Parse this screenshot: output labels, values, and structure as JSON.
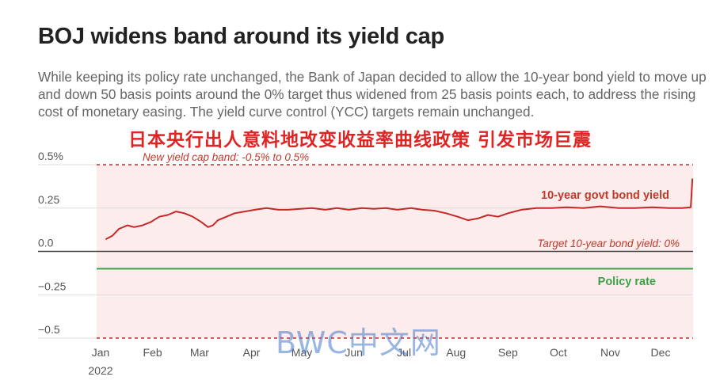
{
  "header": {
    "title": "BOJ widens band around its yield cap",
    "subtitle": "While keeping its policy rate unchanged, the Bank of Japan decided to allow the 10-year bond yield to move up and down 50 basis points around the 0% target thus widened from 25 basis points each, to address the rising cost of monetary easing. The yield curve control (YCC) targets remain unchanged.",
    "overlay_caption": "日本央行出人意料地改变收益率曲线政策 引发市场巨震",
    "watermark": "BWC中文网"
  },
  "chart_data": {
    "type": "line",
    "title": "BOJ widens band around its yield cap",
    "ylim": [
      -0.5,
      0.5
    ],
    "xlim": [
      "2022-01-01",
      "2022-12-31"
    ],
    "y_ticks": [
      {
        "value": 0.5,
        "label": "0.5%"
      },
      {
        "value": 0.25,
        "label": "0.25"
      },
      {
        "value": 0.0,
        "label": "0.0"
      },
      {
        "value": -0.25,
        "label": "−0.25"
      },
      {
        "value": -0.5,
        "label": "−0.5"
      }
    ],
    "x_ticks": [
      {
        "date": "2022-01-01",
        "label": "Jan",
        "sublabel": "2022"
      },
      {
        "date": "2022-02-01",
        "label": "Feb"
      },
      {
        "date": "2022-03-01",
        "label": "Mar"
      },
      {
        "date": "2022-04-01",
        "label": "Apr"
      },
      {
        "date": "2022-05-01",
        "label": "May"
      },
      {
        "date": "2022-06-01",
        "label": "Jun"
      },
      {
        "date": "2022-07-01",
        "label": "Jul"
      },
      {
        "date": "2022-08-01",
        "label": "Aug"
      },
      {
        "date": "2022-09-01",
        "label": "Sep"
      },
      {
        "date": "2022-10-01",
        "label": "Oct"
      },
      {
        "date": "2022-11-01",
        "label": "Nov"
      },
      {
        "date": "2022-12-01",
        "label": "Dec"
      }
    ],
    "band": {
      "upper": 0.5,
      "lower": -0.5,
      "label": "New yield cap band: -0.5% to 0.5%",
      "color": "#fdecec"
    },
    "reference_lines": [
      {
        "name": "Target 10-year bond yield: 0%",
        "value": 0.0,
        "color": "#444444"
      },
      {
        "name": "Policy rate",
        "value": -0.1,
        "color": "#3aa14a"
      }
    ],
    "series": [
      {
        "name": "10-year govt bond yield",
        "color": "#c62828",
        "x": [
          "2022-01-04",
          "2022-01-08",
          "2022-01-12",
          "2022-01-17",
          "2022-01-21",
          "2022-01-26",
          "2022-01-31",
          "2022-02-05",
          "2022-02-10",
          "2022-02-15",
          "2022-02-20",
          "2022-02-25",
          "2022-03-02",
          "2022-03-06",
          "2022-03-09",
          "2022-03-12",
          "2022-03-17",
          "2022-03-22",
          "2022-03-28",
          "2022-04-03",
          "2022-04-10",
          "2022-04-17",
          "2022-04-23",
          "2022-04-30",
          "2022-05-07",
          "2022-05-15",
          "2022-05-22",
          "2022-05-29",
          "2022-06-06",
          "2022-06-13",
          "2022-06-20",
          "2022-06-27",
          "2022-07-05",
          "2022-07-12",
          "2022-07-19",
          "2022-07-26",
          "2022-08-02",
          "2022-08-08",
          "2022-08-14",
          "2022-08-20",
          "2022-08-26",
          "2022-09-01",
          "2022-09-09",
          "2022-09-18",
          "2022-09-27",
          "2022-10-06",
          "2022-10-16",
          "2022-10-26",
          "2022-11-06",
          "2022-11-16",
          "2022-11-26",
          "2022-12-06",
          "2022-12-14",
          "2022-12-19",
          "2022-12-20"
        ],
        "y": [
          0.07,
          0.09,
          0.13,
          0.15,
          0.14,
          0.15,
          0.17,
          0.2,
          0.21,
          0.23,
          0.22,
          0.2,
          0.17,
          0.14,
          0.15,
          0.18,
          0.2,
          0.22,
          0.23,
          0.24,
          0.25,
          0.24,
          0.24,
          0.245,
          0.25,
          0.24,
          0.25,
          0.24,
          0.25,
          0.245,
          0.25,
          0.24,
          0.25,
          0.24,
          0.235,
          0.22,
          0.2,
          0.18,
          0.19,
          0.21,
          0.2,
          0.22,
          0.24,
          0.25,
          0.25,
          0.255,
          0.25,
          0.26,
          0.25,
          0.25,
          0.255,
          0.25,
          0.25,
          0.255,
          0.42
        ]
      }
    ],
    "annotations": [
      {
        "text": "10-year govt bond yield"
      },
      {
        "text": "Target 10-year bond yield: 0%"
      },
      {
        "text": "Policy rate"
      },
      {
        "text": "New yield cap band: -0.5% to 0.5%"
      }
    ]
  }
}
